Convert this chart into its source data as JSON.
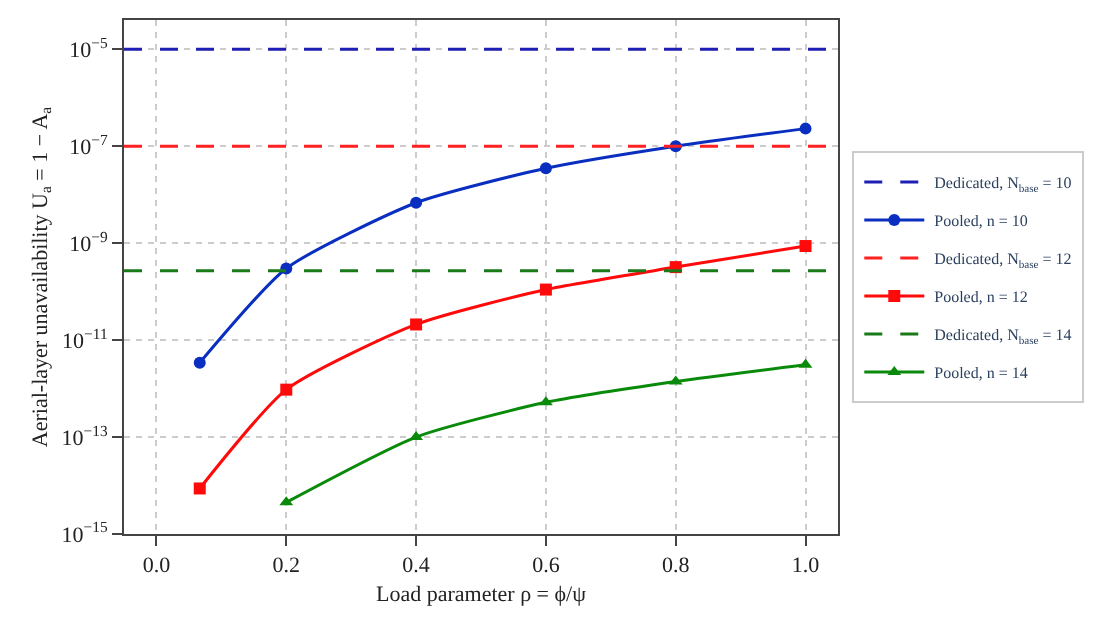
{
  "chart_data": {
    "type": "line",
    "xlabel": "Load parameter ρ = ϕ/ψ",
    "ylabel": "Aerial-layer unavailability U$_{a}$ = 1 − A$_{a}$",
    "log": "y",
    "grid": true,
    "legend": "right",
    "xlim": [
      -0.05,
      1.05
    ],
    "xticks": [
      {
        "value": 0,
        "label": "0.0"
      },
      0.2,
      0.4,
      0.6,
      0.8,
      {
        "value": 1,
        "label": "1.0"
      }
    ],
    "ylim": [
      1e-15,
      4e-05
    ],
    "yticks": [
      {
        "value": 1e-15,
        "label": "10$^{−15}$"
      },
      {
        "value": 1e-13,
        "label": "10$^{−13}$"
      },
      {
        "value": 1e-11,
        "label": "10$^{−11}$"
      },
      {
        "value": 1e-09,
        "label": "10$^{−9}$"
      },
      {
        "value": 1e-07,
        "label": "10$^{−7}$"
      },
      {
        "value": 1e-05,
        "label": "10$^{−5}$"
      }
    ],
    "series": [
      {
        "name": "Dedicated, N$_{base}$ = 10",
        "color": "#1f1fb4",
        "x": [
          -0.05,
          1.05
        ],
        "values": [
          1e-05,
          1e-05
        ],
        "line_style": "dashed",
        "marker": "none"
      },
      {
        "name": "Pooled, n = 10",
        "color": "#0a2fc0",
        "x": [
          0.0667,
          0.2,
          0.4,
          0.6,
          0.8,
          1.0
        ],
        "values": [
          3.4e-12,
          3e-10,
          6.8e-09,
          3.5e-08,
          1e-07,
          2.3e-07
        ],
        "line_style": "solid",
        "marker": "circle"
      },
      {
        "name": "Dedicated, N$_{base}$ = 12",
        "color": "#ff2020",
        "x": [
          -0.05,
          1.05
        ],
        "values": [
          1e-07,
          1e-07
        ],
        "line_style": "dashed",
        "marker": "none"
      },
      {
        "name": "Pooled, n = 12",
        "color": "#ff0a0a",
        "x": [
          0.0667,
          0.2,
          0.4,
          0.6,
          0.8,
          1.0
        ],
        "values": [
          8.7e-15,
          9.5e-13,
          2.1e-11,
          1.1e-10,
          3.2e-10,
          8.7e-10
        ],
        "line_style": "solid",
        "marker": "square"
      },
      {
        "name": "Dedicated, N$_{base}$ = 14",
        "color": "#1a7a1a",
        "x": [
          -0.05,
          1.05
        ],
        "values": [
          2.7e-10,
          2.7e-10
        ],
        "line_style": "dashed",
        "marker": "none"
      },
      {
        "name": "Pooled, n = 14",
        "color": "#0a8a0a",
        "x": [
          0.2,
          0.4,
          0.6,
          0.8,
          1.0
        ],
        "values": [
          4.5e-15,
          1e-13,
          5.2e-13,
          1.4e-12,
          3.1e-12
        ],
        "line_style": "solid",
        "marker": "triangle"
      }
    ]
  }
}
